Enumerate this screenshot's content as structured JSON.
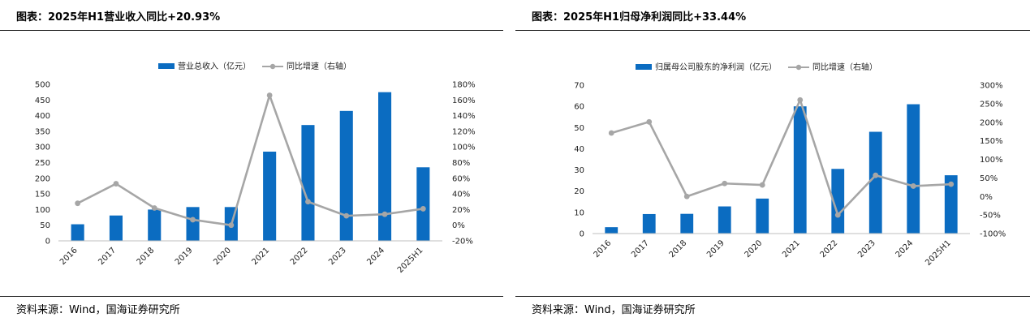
{
  "charts": [
    {
      "title": "图表：2025年H1营业收入同比+20.93%",
      "source": "资料来源：Wind，国海证券研究所",
      "legend": {
        "bar": "营业总收入（亿元）",
        "line": "同比增速（右轴）"
      },
      "colors": {
        "bar": "#0b6cc1",
        "line": "#a6a6a6"
      },
      "chart_data": {
        "type": "bar",
        "categories": [
          "2016",
          "2017",
          "2018",
          "2019",
          "2020",
          "2021",
          "2022",
          "2023",
          "2024",
          "2025H1"
        ],
        "series": [
          {
            "name": "营业总收入（亿元）",
            "axis": "left",
            "kind": "bar",
            "values": [
              53,
              81,
              100,
              108,
              108,
              285,
              370,
              415,
              475,
              235
            ]
          },
          {
            "name": "同比增速（右轴）",
            "axis": "right",
            "kind": "line",
            "values": [
              28,
              53,
              22,
              7,
              0,
              166,
              30,
              12,
              14,
              21
            ]
          }
        ],
        "ylim": [
          0,
          500
        ],
        "yticks": [
          "0",
          "50",
          "100",
          "150",
          "200",
          "250",
          "300",
          "350",
          "400",
          "450",
          "500"
        ],
        "y2lim": [
          -20,
          180
        ],
        "y2ticks": [
          "-20%",
          "0%",
          "20%",
          "40%",
          "60%",
          "80%",
          "100%",
          "120%",
          "140%",
          "160%",
          "180%"
        ],
        "legend_position": "top"
      }
    },
    {
      "title": "图表：2025年H1归母净利润同比+33.44%",
      "source": "资料来源：Wind，国海证券研究所",
      "legend": {
        "bar": "归属母公司股东的净利润（亿元）",
        "line": "同比增速（右轴）"
      },
      "colors": {
        "bar": "#0b6cc1",
        "line": "#a6a6a6"
      },
      "chart_data": {
        "type": "bar",
        "categories": [
          "2016",
          "2017",
          "2018",
          "2019",
          "2020",
          "2021",
          "2022",
          "2023",
          "2024",
          "2025H1"
        ],
        "series": [
          {
            "name": "归属母公司股东的净利润（亿元）",
            "axis": "left",
            "kind": "bar",
            "values": [
              3,
              9.2,
              9.3,
              12.8,
              16.5,
              60,
              30.5,
              48,
              61,
              27.5
            ]
          },
          {
            "name": "同比增速（右轴）",
            "axis": "right",
            "kind": "line",
            "values": [
              171,
              201,
              0,
              35,
              31,
              260,
              -50,
              57,
              28,
              33
            ]
          }
        ],
        "ylim": [
          0,
          70
        ],
        "yticks": [
          "0",
          "10",
          "20",
          "30",
          "40",
          "50",
          "60",
          "70"
        ],
        "y2lim": [
          -100,
          300
        ],
        "y2ticks": [
          "-100%",
          "-50%",
          "0%",
          "50%",
          "100%",
          "150%",
          "200%",
          "250%",
          "300%"
        ],
        "legend_position": "top"
      }
    }
  ]
}
